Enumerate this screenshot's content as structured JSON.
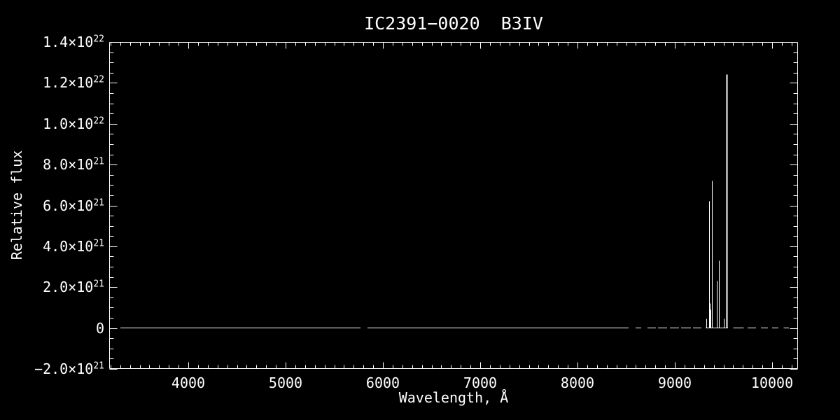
{
  "chart_data": {
    "type": "line",
    "title": "IC2391−0020  B3IV",
    "xlabel": "Wavelength, Å",
    "ylabel": "Relative flux",
    "xlim": [
      3187,
      10266
    ],
    "ylim": [
      -2e+21,
      1.4e+22
    ],
    "grid": false,
    "legend": "none",
    "colors": {
      "background": "#000000",
      "foreground": "#ffffff"
    },
    "x_ticks": [
      {
        "value": 4000,
        "label": "4000"
      },
      {
        "value": 5000,
        "label": "5000"
      },
      {
        "value": 6000,
        "label": "6000"
      },
      {
        "value": 7000,
        "label": "7000"
      },
      {
        "value": 8000,
        "label": "8000"
      },
      {
        "value": 9000,
        "label": "9000"
      },
      {
        "value": 10000,
        "label": "10000"
      }
    ],
    "x_minor_step": 100,
    "y_ticks": [
      {
        "value": -2e+21,
        "label": "−2.0×10^21"
      },
      {
        "value": 0,
        "label": "0"
      },
      {
        "value": 2e+21,
        "label": "2.0×10^21"
      },
      {
        "value": 4e+21,
        "label": "4.0×10^21"
      },
      {
        "value": 6e+21,
        "label": "6.0×10^21"
      },
      {
        "value": 8e+21,
        "label": "8.0×10^21"
      },
      {
        "value": 1e+22,
        "label": "1.0×10^22"
      },
      {
        "value": 1.2e+22,
        "label": "1.2×10^22"
      },
      {
        "value": 1.4e+22,
        "label": "1.4×10^22"
      }
    ],
    "y_minor_step": 5e+20,
    "spectrum": {
      "baseline_flux": 0,
      "solid_segments_angstrom": [
        [
          3302,
          5770
        ],
        [
          5842,
          8525
        ],
        [
          9315,
          9545
        ]
      ],
      "dashed_segments_angstrom": [
        [
          8597,
          8655
        ],
        [
          8719,
          8806
        ],
        [
          8827,
          8921
        ],
        [
          8950,
          9043
        ],
        [
          9065,
          9165
        ],
        [
          9187,
          9273
        ],
        [
          9600,
          9710
        ],
        [
          9748,
          9834
        ],
        [
          9885,
          9957
        ],
        [
          10000,
          10065
        ],
        [
          10120,
          10173
        ]
      ],
      "emission_spikes": [
        {
          "wavelength": 9324,
          "flux": 4.5e+20
        },
        {
          "wavelength": 9352,
          "flux": 6.2e+21
        },
        {
          "wavelength": 9363,
          "flux": 1.2e+21
        },
        {
          "wavelength": 9370,
          "flux": 9e+20
        },
        {
          "wavelength": 9381,
          "flux": 7.2e+21
        },
        {
          "wavelength": 9432,
          "flux": 2.3e+21
        },
        {
          "wavelength": 9453,
          "flux": 3.3e+21
        },
        {
          "wavelength": 9503,
          "flux": 4.5e+20
        },
        {
          "wavelength": 9532,
          "flux": 1.24e+22
        }
      ]
    }
  }
}
